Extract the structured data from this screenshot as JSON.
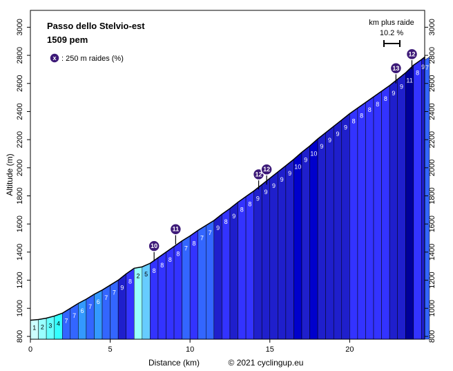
{
  "chart_data": {
    "type": "bar",
    "title": "Passo dello Stelvio-est",
    "subtitle": "1509 pem",
    "xlabel": "Distance (km)",
    "ylabel": "Altitude (m)",
    "credit": "© 2021 cyclingup.eu",
    "xlim": [
      0,
      24.7
    ],
    "ylim": [
      780,
      3120
    ],
    "x_ticks": [
      0,
      5,
      10,
      15,
      20
    ],
    "y_ticks": [
      800,
      1000,
      1200,
      1400,
      1600,
      1800,
      2000,
      2200,
      2400,
      2600,
      2800,
      3000
    ],
    "legend_badge_text": "x",
    "legend_text": ": 250 m raides (%)",
    "steepest_km_label": "km plus raide",
    "steepest_km_value": "10.2 %",
    "segment_km": 0.5,
    "segment_gradients": [
      1,
      2,
      3,
      4,
      7,
      7,
      6,
      7,
      6,
      7,
      7,
      9,
      8,
      2,
      5,
      8,
      8,
      8,
      8,
      7,
      8,
      7,
      7,
      9,
      8,
      9,
      8,
      8,
      9,
      9,
      9,
      9,
      9,
      10,
      9,
      10,
      9,
      9,
      9,
      9,
      8,
      8,
      8,
      8,
      8,
      9,
      9,
      11,
      8,
      9,
      7
    ],
    "grade_colors": {
      "1": "#ccffff",
      "2": "#99ffff",
      "3": "#66ffff",
      "4": "#33ffff",
      "5": "#66ccff",
      "6": "#3399ff",
      "7": "#3366ff",
      "8": "#3333ff",
      "9": "#1f1fcc",
      "10": "#0000cc",
      "11": "#000099",
      "12": "#000066"
    },
    "steep_badges": [
      {
        "x": 7.75,
        "y": 1335,
        "label": "10"
      },
      {
        "x": 9.1,
        "y": 1455,
        "label": "11"
      },
      {
        "x": 14.3,
        "y": 1845,
        "label": "12"
      },
      {
        "x": 14.8,
        "y": 1880,
        "label": "12"
      },
      {
        "x": 22.9,
        "y": 2600,
        "label": "13"
      },
      {
        "x": 23.9,
        "y": 2700,
        "label": "12"
      }
    ],
    "badge_color": "#3d1a78"
  }
}
